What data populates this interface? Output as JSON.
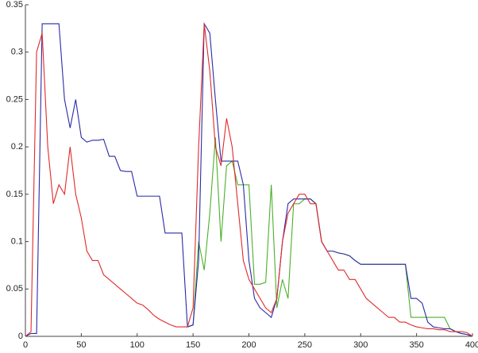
{
  "chart_data": {
    "type": "line",
    "x": [
      0,
      5,
      10,
      15,
      20,
      25,
      30,
      35,
      40,
      45,
      50,
      55,
      60,
      65,
      70,
      75,
      80,
      85,
      90,
      95,
      100,
      105,
      110,
      115,
      120,
      125,
      130,
      135,
      140,
      145,
      150,
      155,
      160,
      165,
      170,
      175,
      180,
      185,
      190,
      195,
      200,
      205,
      210,
      215,
      220,
      225,
      230,
      235,
      240,
      245,
      250,
      255,
      260,
      265,
      270,
      275,
      280,
      285,
      290,
      295,
      300,
      305,
      310,
      315,
      320,
      325,
      330,
      335,
      340,
      345,
      350,
      355,
      360,
      365,
      370,
      375,
      380,
      385,
      390,
      395,
      400
    ],
    "series": [
      {
        "color": "#2a2aa8",
        "values": [
          0,
          0.003,
          0.003,
          0.33,
          0.33,
          0.33,
          0.33,
          0.25,
          0.22,
          0.25,
          0.21,
          0.205,
          0.207,
          0.207,
          0.208,
          0.19,
          0.19,
          0.175,
          0.174,
          0.174,
          0.148,
          0.148,
          0.148,
          0.148,
          0.148,
          0.109,
          0.109,
          0.109,
          0.109,
          0.01,
          0.012,
          0.08,
          0.33,
          0.32,
          0.25,
          0.185,
          0.185,
          0.185,
          0.185,
          0.16,
          0.08,
          0.04,
          0.03,
          0.025,
          0.02,
          0.04,
          0.1,
          0.14,
          0.145,
          0.145,
          0.145,
          0.145,
          0.14,
          0.1,
          0.09,
          0.09,
          0.088,
          0.087,
          0.085,
          0.08,
          0.076,
          0.076,
          0.076,
          0.076,
          0.076,
          0.076,
          0.076,
          0.076,
          0.076,
          0.04,
          0.04,
          0.035,
          0.015,
          0.01,
          0.009,
          0.008,
          0.008,
          0.005,
          0.003,
          0.002,
          0
        ]
      },
      {
        "color": "#e02a2a",
        "values": [
          0,
          0.005,
          0.3,
          0.32,
          0.2,
          0.14,
          0.16,
          0.15,
          0.2,
          0.15,
          0.125,
          0.09,
          0.08,
          0.08,
          0.065,
          0.06,
          0.055,
          0.05,
          0.045,
          0.04,
          0.035,
          0.033,
          0.028,
          0.022,
          0.018,
          0.015,
          0.012,
          0.01,
          0.01,
          0.01,
          0.03,
          0.2,
          0.33,
          0.28,
          0.2,
          0.18,
          0.23,
          0.2,
          0.14,
          0.08,
          0.06,
          0.05,
          0.04,
          0.03,
          0.025,
          0.04,
          0.1,
          0.13,
          0.14,
          0.15,
          0.15,
          0.14,
          0.14,
          0.1,
          0.09,
          0.08,
          0.07,
          0.07,
          0.06,
          0.06,
          0.05,
          0.04,
          0.035,
          0.03,
          0.025,
          0.02,
          0.02,
          0.015,
          0.015,
          0.012,
          0.01,
          0.009,
          0.008,
          0.008,
          0.007,
          0.007,
          0.005,
          0.005,
          0.005,
          0.004,
          0
        ]
      },
      {
        "color": "#4caf2a",
        "values": [
          null,
          null,
          null,
          null,
          null,
          null,
          null,
          null,
          null,
          null,
          null,
          null,
          null,
          null,
          null,
          null,
          null,
          null,
          null,
          null,
          null,
          null,
          null,
          null,
          null,
          null,
          null,
          null,
          null,
          0.01,
          0.012,
          0.1,
          0.07,
          0.13,
          0.21,
          0.1,
          0.18,
          0.185,
          0.16,
          0.16,
          0.16,
          0.055,
          0.055,
          0.057,
          0.16,
          0.03,
          0.06,
          0.04,
          0.14,
          0.14,
          0.145,
          0.145,
          0.14,
          0.1,
          0.09,
          0.09,
          0.088,
          0.087,
          0.085,
          0.08,
          0.076,
          0.076,
          0.076,
          0.076,
          0.076,
          0.076,
          0.076,
          0.076,
          0.076,
          0.02,
          0.02,
          0.02,
          0.02,
          0.02,
          0.02,
          0.02,
          0.008,
          0.005,
          0.003,
          0.002,
          0
        ]
      }
    ],
    "xlim": [
      0,
      400
    ],
    "xticks": [
      0,
      50,
      100,
      150,
      200,
      250,
      300,
      350,
      400
    ],
    "ylim": [
      0,
      0.35
    ],
    "yticks": [
      0,
      0.05,
      0.1,
      0.15,
      0.2,
      0.25,
      0.3,
      0.35
    ]
  }
}
